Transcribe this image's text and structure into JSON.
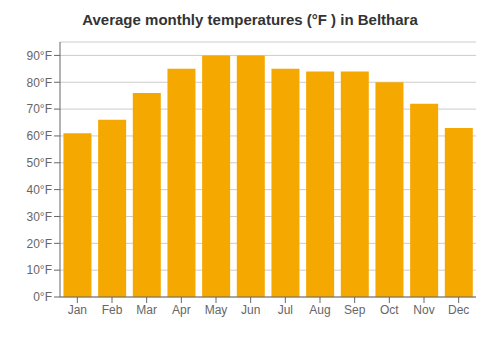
{
  "chart_data": {
    "type": "bar",
    "title": "Average monthly temperatures (°F ) in Belthara",
    "categories": [
      "Jan",
      "Feb",
      "Mar",
      "Apr",
      "May",
      "Jun",
      "Jul",
      "Aug",
      "Sep",
      "Oct",
      "Nov",
      "Dec"
    ],
    "values": [
      61,
      66,
      76,
      85,
      90,
      90,
      85,
      84,
      84,
      80,
      72,
      63
    ],
    "color": "#F5A800",
    "ylim": [
      0,
      95
    ],
    "yticks": [
      {
        "value": 0,
        "label": "0°F"
      },
      {
        "value": 10,
        "label": "10°F"
      },
      {
        "value": 20,
        "label": "20°F"
      },
      {
        "value": 30,
        "label": "30°F"
      },
      {
        "value": 40,
        "label": "40°F"
      },
      {
        "value": 50,
        "label": "50°F"
      },
      {
        "value": 60,
        "label": "60°F"
      },
      {
        "value": 70,
        "label": "70°F"
      },
      {
        "value": 80,
        "label": "80°F"
      },
      {
        "value": 90,
        "label": "90°F"
      }
    ],
    "grid": true
  }
}
